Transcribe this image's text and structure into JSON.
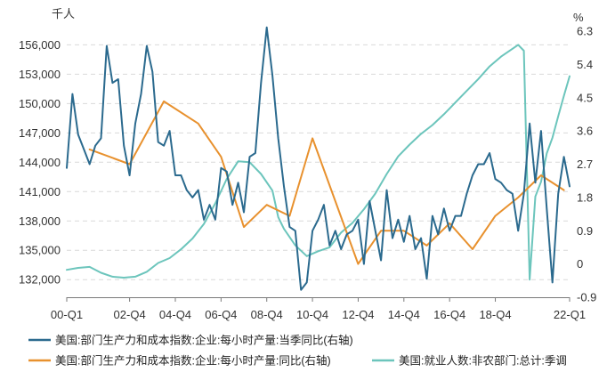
{
  "chart_data": {
    "type": "line",
    "title": "",
    "left_unit": "千人",
    "right_unit": "%",
    "grid": true,
    "legend_position": "bottom",
    "x_categories": [
      "00-Q1",
      "02-Q4",
      "04-Q4",
      "06-Q4",
      "08-Q4",
      "10-Q4",
      "12-Q4",
      "14-Q4",
      "16-Q4",
      "18-Q4",
      "22-Q1"
    ],
    "x_tick_quarters": [
      0,
      11,
      19,
      27,
      35,
      43,
      51,
      59,
      67,
      75,
      88
    ],
    "x_range": [
      0,
      88
    ],
    "ylim_left": [
      130200,
      157400
    ],
    "ylim_right": [
      -0.9,
      6.3
    ],
    "left_ticks": [
      "132,000",
      "135,000",
      "138,000",
      "141,000",
      "144,000",
      "147,000",
      "150,000",
      "153,000",
      "156,000"
    ],
    "right_ticks": [
      "-0.9",
      "0",
      "0.9",
      "1.8",
      "2.7",
      "3.6",
      "4.5",
      "5.4",
      "6.3"
    ],
    "series": [
      {
        "name": "美国:部门生产力和成本指数:企业:每小时产量:当季同比(右轴)",
        "axis": "right",
        "color": "#2b6a8e",
        "x": [
          0,
          1,
          2,
          3,
          4,
          5,
          6,
          7,
          8,
          9,
          10,
          11,
          12,
          13,
          14,
          15,
          16,
          17,
          18,
          19,
          20,
          21,
          22,
          23,
          24,
          25,
          26,
          27,
          28,
          29,
          30,
          31,
          32,
          33,
          34,
          35,
          36,
          37,
          38,
          39,
          40,
          41,
          42,
          43,
          44,
          45,
          46,
          47,
          48,
          49,
          50,
          51,
          52,
          53,
          54,
          55,
          56,
          57,
          58,
          59,
          60,
          61,
          62,
          63,
          64,
          65,
          66,
          67,
          68,
          69,
          70,
          71,
          72,
          73,
          74,
          75,
          76,
          77,
          78,
          79,
          80,
          81,
          82,
          83,
          84,
          85,
          86,
          87,
          88
        ],
        "values": [
          2.6,
          4.6,
          3.5,
          3.1,
          2.7,
          3.2,
          3.4,
          5.9,
          4.9,
          5.0,
          3.2,
          2.4,
          3.8,
          4.6,
          5.9,
          5.2,
          3.3,
          3.2,
          3.6,
          2.4,
          2.4,
          2.0,
          1.8,
          2.0,
          1.2,
          1.6,
          1.2,
          2.6,
          2.5,
          1.6,
          2.2,
          1.4,
          2.9,
          3.0,
          4.9,
          6.4,
          5.1,
          3.4,
          2.1,
          1.0,
          0.9,
          -0.7,
          -0.5,
          0.9,
          1.2,
          1.6,
          0.5,
          0.9,
          0.4,
          0.8,
          0.9,
          1.2,
          0.0,
          1.7,
          0.9,
          0.1,
          2.0,
          0.7,
          1.2,
          0.6,
          1.3,
          0.4,
          0.7,
          -0.4,
          1.3,
          0.8,
          1.5,
          0.9,
          1.3,
          1.3,
          1.9,
          2.4,
          2.7,
          2.7,
          3.0,
          2.3,
          2.2,
          2.0,
          1.9,
          0.9,
          1.9,
          3.8,
          2.2,
          3.6,
          1.5,
          -0.5,
          1.9,
          2.9,
          2.1
        ]
      },
      {
        "name": "美国:部门生产力和成本指数:企业:每小时产量:同比(右轴)",
        "axis": "right",
        "color": "#e8912e",
        "x": [
          4,
          11,
          17,
          23,
          27,
          31,
          35,
          39,
          43,
          51,
          55,
          59,
          63,
          67,
          71,
          75,
          79,
          83,
          87
        ],
        "values": [
          3.1,
          2.7,
          4.4,
          3.8,
          2.9,
          1.0,
          1.6,
          1.3,
          3.4,
          0.0,
          0.9,
          0.9,
          0.5,
          1.1,
          0.4,
          1.3,
          1.8,
          2.4,
          2.0
        ]
      },
      {
        "name": "美国:就业人数:非农部门:总计:季调",
        "axis": "left",
        "color": "#6cc5bc",
        "x": [
          0,
          2,
          4,
          6,
          8,
          10,
          12,
          14,
          16,
          18,
          20,
          22,
          24,
          26,
          28,
          30,
          32,
          34,
          36,
          37,
          38,
          40,
          42,
          44,
          46,
          48,
          50,
          52,
          54,
          56,
          58,
          60,
          62,
          64,
          66,
          68,
          70,
          72,
          74,
          76,
          78,
          79,
          80,
          81,
          82,
          83,
          84,
          85,
          86,
          87,
          88
        ],
        "values": [
          133000,
          133200,
          133300,
          132700,
          132300,
          132200,
          132300,
          132800,
          133700,
          134200,
          135100,
          136200,
          137700,
          139800,
          142300,
          144100,
          144000,
          142800,
          141100,
          138400,
          137200,
          135500,
          134400,
          134900,
          135300,
          136800,
          137800,
          139200,
          140800,
          142800,
          144600,
          145800,
          146900,
          147800,
          148900,
          150100,
          151300,
          152500,
          153800,
          154800,
          155600,
          156000,
          155400,
          132000,
          140500,
          142000,
          144900,
          146500,
          148700,
          150800,
          152800
        ]
      }
    ]
  }
}
